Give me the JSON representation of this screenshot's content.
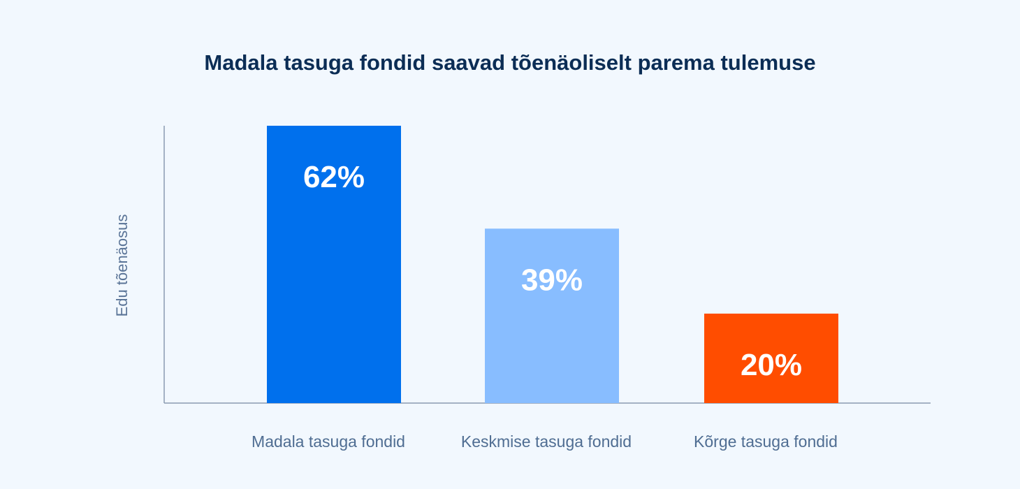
{
  "chart_data": {
    "type": "bar",
    "title": "Madala tasuga fondid saavad tõenäoliselt parema tulemuse",
    "xlabel": "",
    "ylabel": "Edu tõenäosus",
    "categories": [
      "Madala tasuga fondid",
      "Keskmise tasuga fondid",
      "Kõrge tasuga fondid"
    ],
    "values": [
      62,
      39,
      20
    ],
    "data_labels": [
      "62%",
      "39%",
      "20%"
    ],
    "bar_colors": [
      "#0070ed",
      "#88bdff",
      "#ff4d00"
    ],
    "ylim": [
      0,
      62
    ],
    "grid": false,
    "legend": "none"
  }
}
